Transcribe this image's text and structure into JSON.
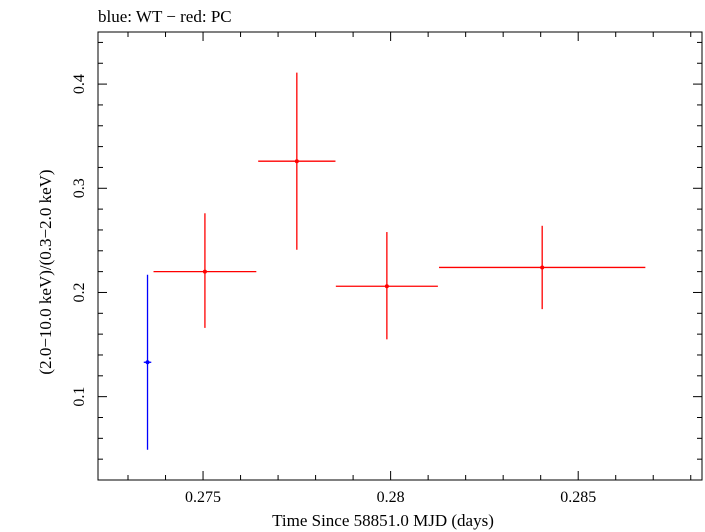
{
  "chart_data": {
    "type": "scatter",
    "title": "blue: WT − red: PC",
    "xlabel": "Time Since 58851.0 MJD (days)",
    "ylabel": "(2.0−10.0 keV)/(0.3−2.0 keV)",
    "xlim": [
      0.2722,
      0.2883
    ],
    "ylim": [
      0.02,
      0.45
    ],
    "x_ticks": [
      0.275,
      0.28,
      0.285
    ],
    "x_tick_labels": [
      "0.275",
      "0.28",
      "0.285"
    ],
    "y_ticks": [
      0.1,
      0.2,
      0.3,
      0.4
    ],
    "y_tick_labels": [
      "0.1",
      "0.2",
      "0.3",
      "0.4"
    ],
    "grid": false,
    "legend": "none",
    "series": [
      {
        "color": "#0000ff",
        "points": [
          {
            "x": 0.27352,
            "xerr": 0.0001,
            "y": 0.133,
            "ylo": 0.049,
            "yhi": 0.217
          }
        ]
      },
      {
        "color": "#ff0000",
        "points": [
          {
            "x": 0.27505,
            "xerr": 0.00137,
            "y": 0.22,
            "ylo": 0.166,
            "yhi": 0.276
          },
          {
            "x": 0.2775,
            "xerr": 0.00103,
            "y": 0.326,
            "ylo": 0.241,
            "yhi": 0.411
          },
          {
            "x": 0.2799,
            "xerr": 0.00136,
            "y": 0.206,
            "ylo": 0.155,
            "yhi": 0.258
          },
          {
            "x": 0.28404,
            "xerr": 0.00275,
            "y": 0.224,
            "ylo": 0.184,
            "yhi": 0.264
          }
        ]
      }
    ]
  }
}
